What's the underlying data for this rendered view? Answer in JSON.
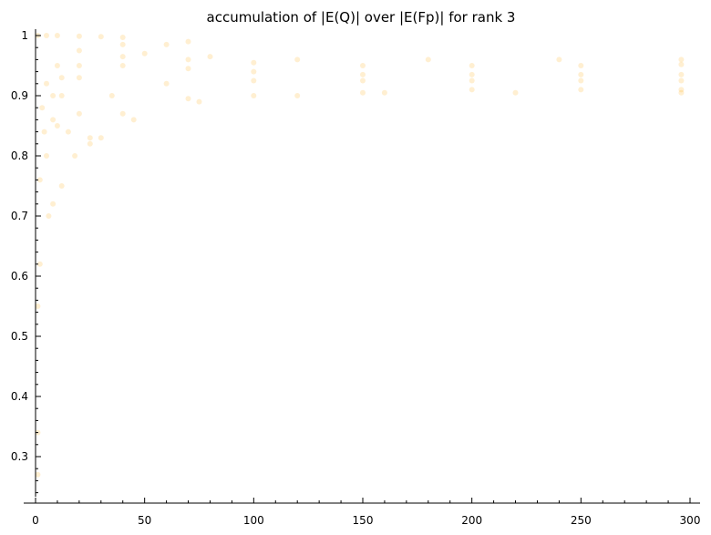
{
  "chart_data": {
    "type": "scatter",
    "title": "accumulation of |E(Q)| over |E(Fp)| for rank 3",
    "xlabel": "",
    "ylabel": "",
    "xlim": [
      0,
      303
    ],
    "ylim": [
      0.225,
      1.015
    ],
    "x_ticks": [
      0,
      50,
      100,
      150,
      200,
      250,
      300
    ],
    "y_ticks": [
      0.3,
      0.4,
      0.5,
      0.6,
      0.7,
      0.8,
      0.9,
      1
    ],
    "x_tick_labels": [
      "0",
      "50",
      "100",
      "150",
      "200",
      "250",
      "300"
    ],
    "y_tick_labels": [
      "0.3",
      "0.4",
      "0.5",
      "0.6",
      "0.7",
      "0.8",
      "0.9",
      "1"
    ],
    "grid": false,
    "legend": "none",
    "marker_color": "#ffa500",
    "marker_alpha": 0.18,
    "series": [
      {
        "points": [
          [
            1,
            0.27
          ],
          [
            1,
            0.34
          ],
          [
            1,
            0.55
          ],
          [
            2,
            0.62
          ],
          [
            2,
            0.76
          ],
          [
            3,
            0.88
          ],
          [
            4,
            0.84
          ],
          [
            5,
            0.8
          ],
          [
            8,
            0.9
          ],
          [
            12,
            0.93
          ],
          [
            20,
            0.95
          ],
          [
            40,
            0.965
          ],
          [
            70,
            0.96
          ],
          [
            100,
            0.955
          ],
          [
            150,
            0.95
          ],
          [
            200,
            0.95
          ],
          [
            250,
            0.95
          ],
          [
            296,
            0.952
          ]
        ]
      },
      {
        "points": [
          [
            1,
            1.0
          ],
          [
            5,
            1.0
          ],
          [
            10,
            1.0
          ],
          [
            20,
            0.999
          ],
          [
            30,
            0.998
          ],
          [
            40,
            0.997
          ]
        ]
      },
      {
        "points": [
          [
            5,
            0.92
          ],
          [
            10,
            0.95
          ],
          [
            20,
            0.975
          ],
          [
            40,
            0.985
          ],
          [
            60,
            0.985
          ],
          [
            70,
            0.99
          ]
        ]
      },
      {
        "points": [
          [
            8,
            0.86
          ],
          [
            12,
            0.9
          ],
          [
            20,
            0.93
          ],
          [
            40,
            0.95
          ],
          [
            70,
            0.945
          ],
          [
            100,
            0.94
          ],
          [
            150,
            0.935
          ],
          [
            200,
            0.935
          ],
          [
            250,
            0.935
          ],
          [
            296,
            0.935
          ]
        ]
      },
      {
        "points": [
          [
            10,
            0.85
          ],
          [
            20,
            0.87
          ],
          [
            35,
            0.9
          ],
          [
            60,
            0.92
          ],
          [
            100,
            0.925
          ],
          [
            150,
            0.925
          ],
          [
            200,
            0.925
          ],
          [
            250,
            0.925
          ],
          [
            296,
            0.925
          ]
        ]
      },
      {
        "points": [
          [
            15,
            0.84
          ],
          [
            25,
            0.83
          ],
          [
            40,
            0.87
          ],
          [
            70,
            0.895
          ],
          [
            100,
            0.9
          ],
          [
            150,
            0.905
          ],
          [
            200,
            0.91
          ],
          [
            250,
            0.91
          ],
          [
            296,
            0.91
          ]
        ]
      },
      {
        "points": [
          [
            30,
            0.83
          ],
          [
            45,
            0.86
          ],
          [
            75,
            0.89
          ],
          [
            120,
            0.9
          ],
          [
            160,
            0.905
          ],
          [
            220,
            0.905
          ],
          [
            296,
            0.905
          ]
        ]
      },
      {
        "points": [
          [
            50,
            0.97
          ],
          [
            80,
            0.965
          ],
          [
            120,
            0.96
          ],
          [
            180,
            0.96
          ],
          [
            240,
            0.96
          ],
          [
            296,
            0.96
          ]
        ]
      },
      {
        "points": [
          [
            6,
            0.7
          ],
          [
            8,
            0.72
          ],
          [
            12,
            0.75
          ],
          [
            18,
            0.8
          ],
          [
            25,
            0.82
          ]
        ]
      }
    ]
  }
}
